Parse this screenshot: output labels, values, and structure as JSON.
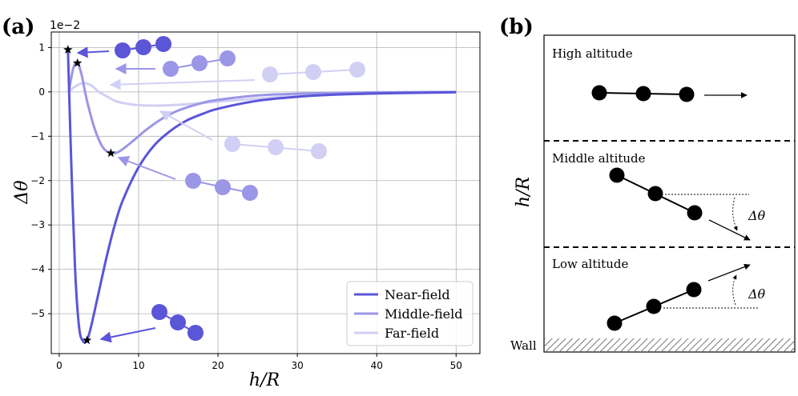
{
  "panel_a": {
    "label": "(a)",
    "offset_text": "1e−2",
    "xlabel": "h/R",
    "ylabel": "Δθ"
  },
  "panel_b": {
    "label": "(b)",
    "ylabel": "h/R",
    "regions": {
      "high": "High altitude",
      "middle": "Middle altitude",
      "low": "Low altitude",
      "wall": "Wall"
    },
    "angle_label": "Δθ"
  },
  "colors": {
    "near": "#5b55d8",
    "middle": "#9b96e6",
    "far": "#d2cff4",
    "grid": "#b0b0b0"
  },
  "chart_data": {
    "type": "line",
    "title": "",
    "xlabel": "h/R",
    "ylabel": "Δθ",
    "y_scale_note": "1e−2",
    "xlim": [
      -1,
      53
    ],
    "ylim": [
      -5.9,
      1.35
    ],
    "xticks": [
      0,
      10,
      20,
      30,
      40,
      50
    ],
    "yticks": [
      -5,
      -4,
      -3,
      -2,
      -1,
      0,
      1
    ],
    "grid": true,
    "legend": {
      "position": "lower right",
      "entries": [
        "Near-field",
        "Middle-field",
        "Far-field"
      ]
    },
    "series": [
      {
        "name": "Near-field",
        "color": "#5b55d8",
        "x": [
          1.1,
          1.5,
          2.0,
          2.5,
          3.0,
          3.5,
          4.0,
          5.0,
          6.0,
          7.0,
          8.0,
          10.0,
          12.0,
          14.0,
          16.0,
          18.0,
          20.0,
          25.0,
          30.0,
          35.0,
          40.0,
          45.0,
          50.0
        ],
        "y": [
          0.95,
          -1.5,
          -4.0,
          -5.3,
          -5.62,
          -5.6,
          -5.3,
          -4.5,
          -3.7,
          -3.0,
          -2.45,
          -1.7,
          -1.2,
          -0.88,
          -0.65,
          -0.5,
          -0.38,
          -0.2,
          -0.11,
          -0.06,
          -0.035,
          -0.02,
          -0.01
        ],
        "markers": [
          [
            1.1,
            0.95
          ],
          [
            3.5,
            -5.6
          ]
        ]
      },
      {
        "name": "Middle-field",
        "color": "#9b96e6",
        "x": [
          1.2,
          1.8,
          2.3,
          2.8,
          3.5,
          4.5,
          5.5,
          6.5,
          7.5,
          9.0,
          11.0,
          13.0,
          15.0,
          18.0,
          20.0,
          25.0,
          30.0,
          35.0,
          40.0,
          45.0,
          50.0
        ],
        "y": [
          0.0,
          0.55,
          0.65,
          0.4,
          -0.2,
          -0.85,
          -1.25,
          -1.38,
          -1.35,
          -1.15,
          -0.85,
          -0.6,
          -0.42,
          -0.25,
          -0.18,
          -0.08,
          -0.04,
          -0.02,
          -0.01,
          -0.005,
          0.0
        ],
        "markers": [
          [
            2.3,
            0.65
          ],
          [
            6.5,
            -1.38
          ]
        ]
      },
      {
        "name": "Far-field",
        "color": "#d2cff4",
        "x": [
          1.2,
          2.0,
          3.0,
          4.0,
          5.0,
          6.0,
          7.0,
          8.0,
          9.0,
          10.0,
          12.0,
          14.0,
          16.0,
          18.0,
          20.0,
          25.0,
          30.0,
          40.0,
          50.0
        ],
        "y": [
          0.0,
          0.12,
          0.2,
          0.15,
          0.0,
          -0.1,
          -0.2,
          -0.25,
          -0.28,
          -0.3,
          -0.31,
          -0.3,
          -0.28,
          -0.25,
          -0.22,
          -0.15,
          -0.09,
          -0.04,
          -0.01
        ],
        "markers": []
      }
    ]
  }
}
